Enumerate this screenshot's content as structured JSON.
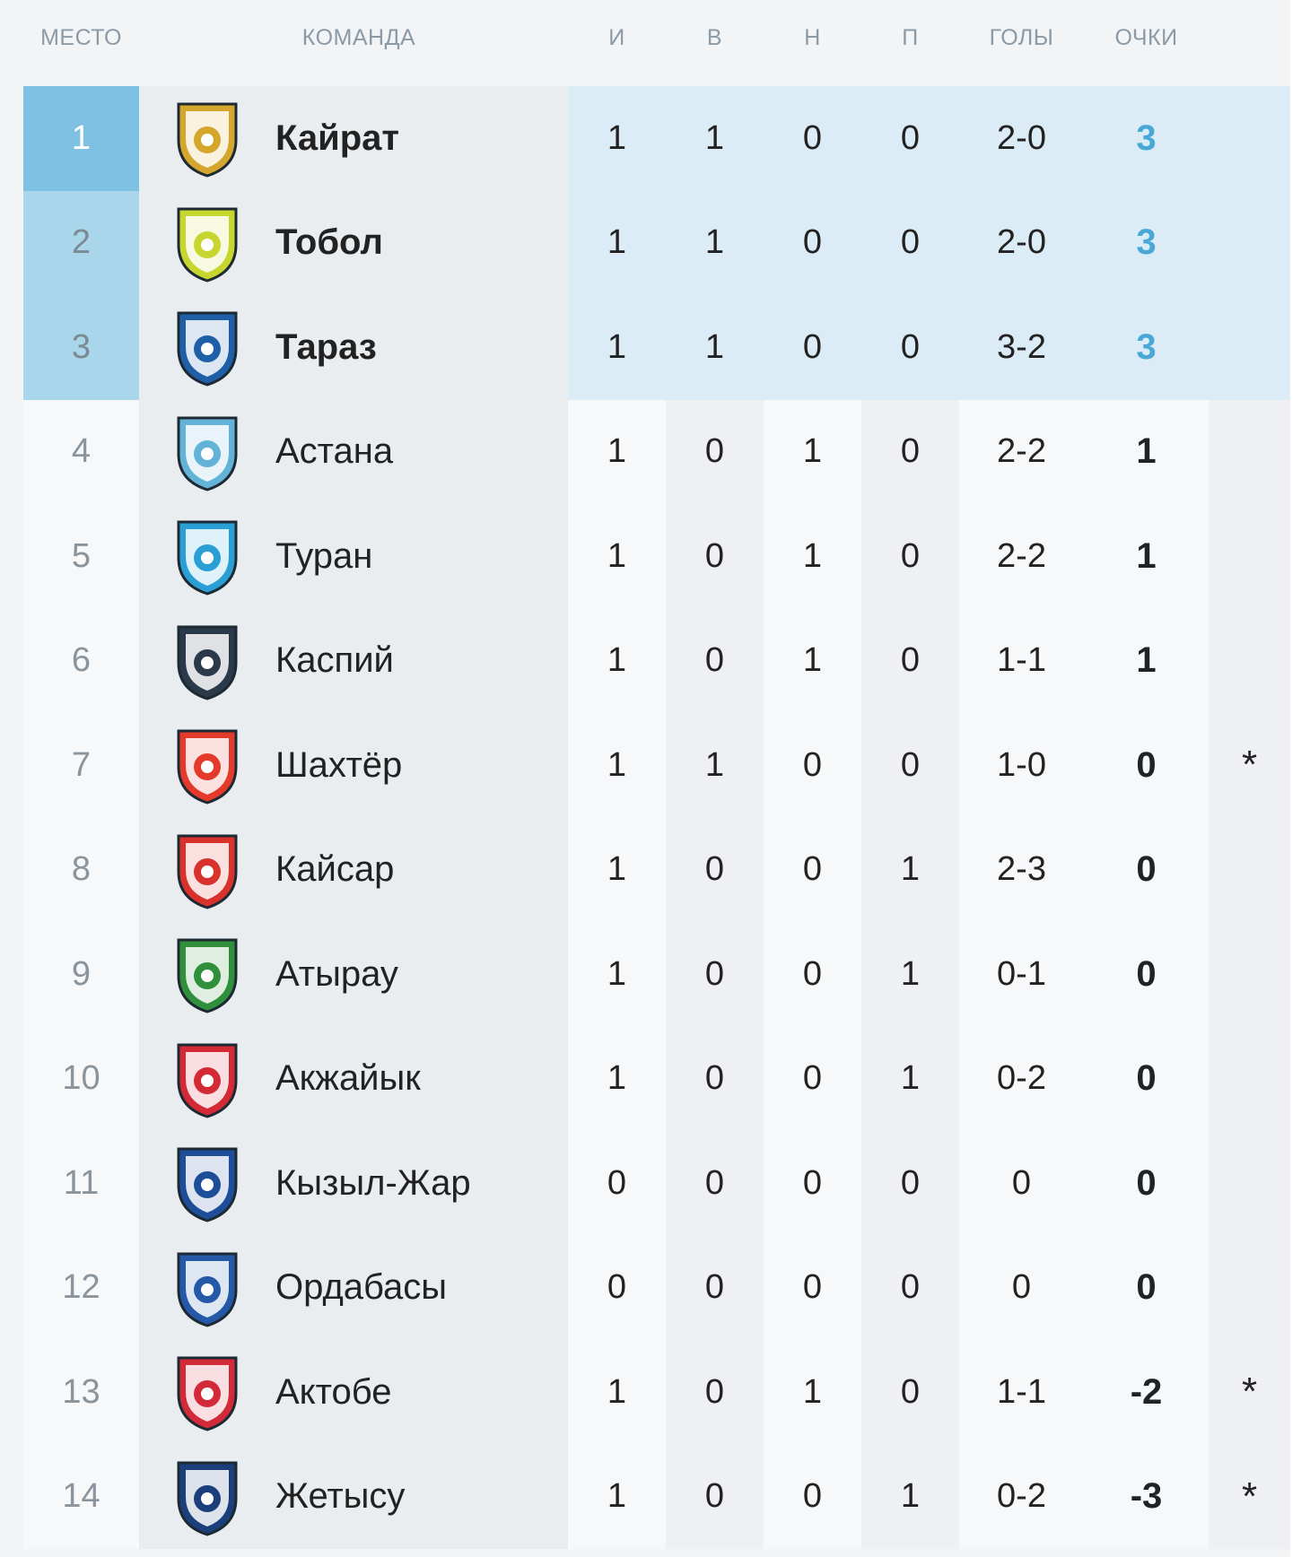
{
  "header": {
    "rank": "МЕСТО",
    "team": "КОМАНДА",
    "played": "И",
    "won": "В",
    "drawn": "Н",
    "lost": "П",
    "goals": "ГОЛЫ",
    "points": "ОЧКИ"
  },
  "colors": {
    "accent": "#4aa8d6",
    "rank_first_bg": "#7fc1e3",
    "rank_highlight_bg": "#a9d6ea",
    "stats_highlight_bg": "#dcecf6"
  },
  "rows": [
    {
      "rank": "1",
      "team": "Кайрат",
      "i": "1",
      "v": "1",
      "n": "0",
      "p": "0",
      "goals": "2-0",
      "points": "3",
      "note": "",
      "logo_icon": "kairat-logo",
      "logo_color": "#d4a72c"
    },
    {
      "rank": "2",
      "team": "Тобол",
      "i": "1",
      "v": "1",
      "n": "0",
      "p": "0",
      "goals": "2-0",
      "points": "3",
      "note": "",
      "logo_icon": "tobol-logo",
      "logo_color": "#c6d62e"
    },
    {
      "rank": "3",
      "team": "Тараз",
      "i": "1",
      "v": "1",
      "n": "0",
      "p": "0",
      "goals": "3-2",
      "points": "3",
      "note": "",
      "logo_icon": "taraz-logo",
      "logo_color": "#1f5fa8"
    },
    {
      "rank": "4",
      "team": "Астана",
      "i": "1",
      "v": "0",
      "n": "1",
      "p": "0",
      "goals": "2-2",
      "points": "1",
      "note": "",
      "logo_icon": "astana-logo",
      "logo_color": "#63b3d8"
    },
    {
      "rank": "5",
      "team": "Туран",
      "i": "1",
      "v": "0",
      "n": "1",
      "p": "0",
      "goals": "2-2",
      "points": "1",
      "note": "",
      "logo_icon": "turan-logo",
      "logo_color": "#2a9fd6"
    },
    {
      "rank": "6",
      "team": "Каспий",
      "i": "1",
      "v": "0",
      "n": "1",
      "p": "0",
      "goals": "1-1",
      "points": "1",
      "note": "",
      "logo_icon": "caspiy-logo",
      "logo_color": "#2b3a4a"
    },
    {
      "rank": "7",
      "team": "Шахтёр",
      "i": "1",
      "v": "1",
      "n": "0",
      "p": "0",
      "goals": "1-0",
      "points": "0",
      "note": "*",
      "logo_icon": "shakhter-logo",
      "logo_color": "#e43a2b"
    },
    {
      "rank": "8",
      "team": "Кайсар",
      "i": "1",
      "v": "0",
      "n": "0",
      "p": "1",
      "goals": "2-3",
      "points": "0",
      "note": "",
      "logo_icon": "kaysar-logo",
      "logo_color": "#d9312b"
    },
    {
      "rank": "9",
      "team": "Атырау",
      "i": "1",
      "v": "0",
      "n": "0",
      "p": "1",
      "goals": "0-1",
      "points": "0",
      "note": "",
      "logo_icon": "atyrau-logo",
      "logo_color": "#2f8f3a"
    },
    {
      "rank": "10",
      "team": "Акжайык",
      "i": "1",
      "v": "0",
      "n": "0",
      "p": "1",
      "goals": "0-2",
      "points": "0",
      "note": "",
      "logo_icon": "akzhayik-logo",
      "logo_color": "#d42a36"
    },
    {
      "rank": "11",
      "team": "Кызыл-Жар",
      "i": "0",
      "v": "0",
      "n": "0",
      "p": "0",
      "goals": "0",
      "points": "0",
      "note": "",
      "logo_icon": "kyzylzhar-logo",
      "logo_color": "#1e4e9a"
    },
    {
      "rank": "12",
      "team": "Ордабасы",
      "i": "0",
      "v": "0",
      "n": "0",
      "p": "0",
      "goals": "0",
      "points": "0",
      "note": "",
      "logo_icon": "ordabasy-logo",
      "logo_color": "#2459a8"
    },
    {
      "rank": "13",
      "team": "Актобе",
      "i": "1",
      "v": "0",
      "n": "1",
      "p": "0",
      "goals": "1-1",
      "points": "-2",
      "note": "*",
      "logo_icon": "aktobe-logo",
      "logo_color": "#d32a3a"
    },
    {
      "rank": "14",
      "team": "Жетысу",
      "i": "1",
      "v": "0",
      "n": "0",
      "p": "1",
      "goals": "0-2",
      "points": "-3",
      "note": "*",
      "logo_icon": "zhetysu-logo",
      "logo_color": "#1b3f7a"
    }
  ]
}
